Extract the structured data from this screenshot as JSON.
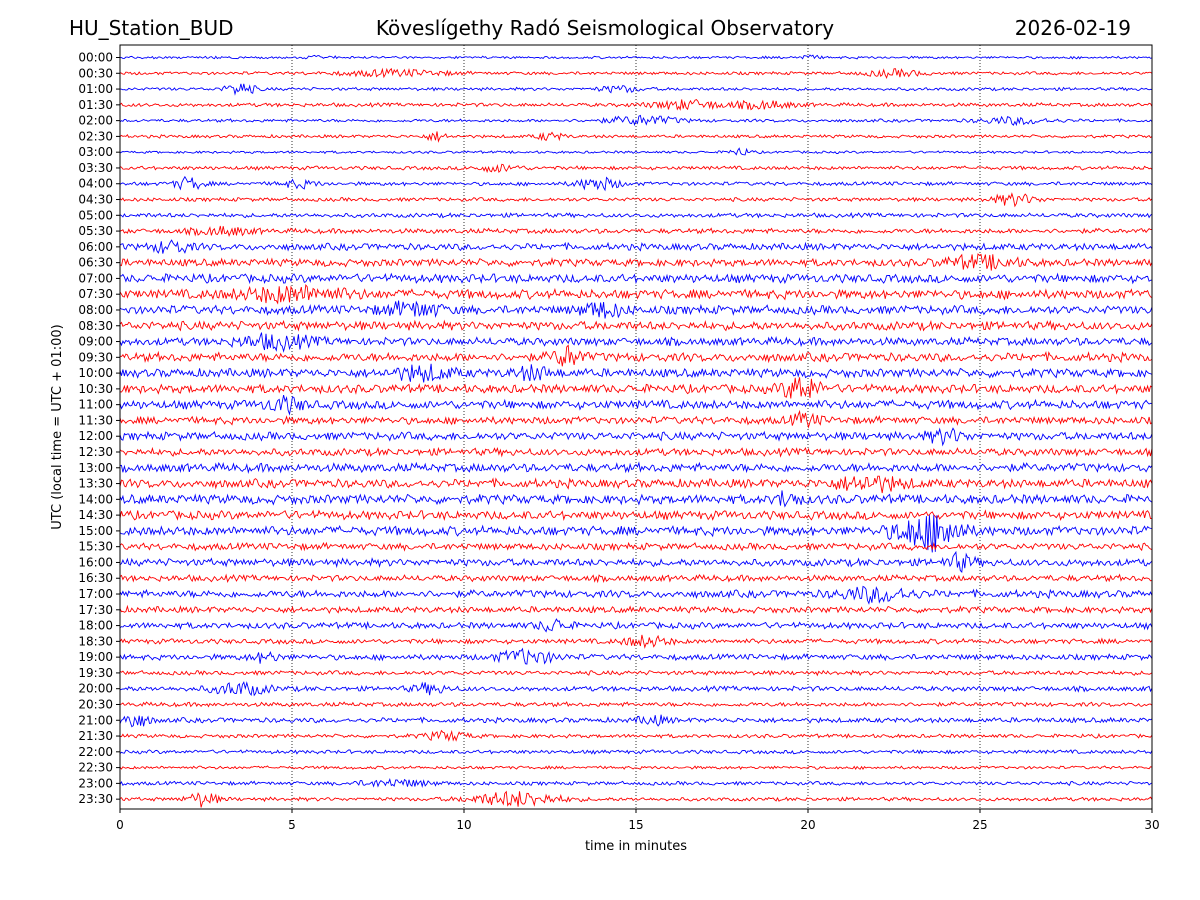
{
  "header": {
    "station": "HU_Station_BUD",
    "observatory": "Köveslígethy Radó Seismological Observatory",
    "date": "2026-02-19"
  },
  "chart_data": {
    "type": "line",
    "title": "Köveslígethy Radó Seismological Observatory",
    "xlabel": "time in minutes",
    "ylabel": "UTC (local time = UTC + 01:00)",
    "xlim": [
      0,
      30
    ],
    "x_ticks": [
      0,
      5,
      10,
      15,
      20,
      25,
      30
    ],
    "grid": "vertical dotted at each x tick",
    "trace_colors": [
      "#0000ff",
      "#ff0000"
    ],
    "rows": [
      {
        "label": "00:00",
        "amp": 0.2,
        "events": [
          {
            "t": 5.8,
            "amp": 0.3,
            "dur": 0.3
          },
          {
            "t": 20.0,
            "amp": 0.3,
            "dur": 0.3
          }
        ]
      },
      {
        "label": "00:30",
        "amp": 0.25,
        "events": [
          {
            "t": 8.0,
            "amp": 0.4,
            "dur": 1.5
          },
          {
            "t": 22.5,
            "amp": 0.45,
            "dur": 0.8
          }
        ]
      },
      {
        "label": "01:00",
        "amp": 0.25,
        "events": [
          {
            "t": 3.5,
            "amp": 0.85,
            "dur": 0.4
          },
          {
            "t": 14.5,
            "amp": 0.4,
            "dur": 0.6
          }
        ]
      },
      {
        "label": "01:30",
        "amp": 0.3,
        "events": [
          {
            "t": 16.5,
            "amp": 0.6,
            "dur": 1.0
          },
          {
            "t": 18.7,
            "amp": 0.5,
            "dur": 0.8
          }
        ]
      },
      {
        "label": "02:00",
        "amp": 0.25,
        "events": [
          {
            "t": 15.2,
            "amp": 0.6,
            "dur": 1.0
          },
          {
            "t": 26.0,
            "amp": 0.45,
            "dur": 1.0
          }
        ]
      },
      {
        "label": "02:30",
        "amp": 0.25,
        "events": [
          {
            "t": 9.2,
            "amp": 0.6,
            "dur": 0.3
          },
          {
            "t": 12.5,
            "amp": 0.5,
            "dur": 0.4
          }
        ]
      },
      {
        "label": "03:00",
        "amp": 0.2,
        "events": [
          {
            "t": 18.0,
            "amp": 0.5,
            "dur": 0.3
          }
        ]
      },
      {
        "label": "03:30",
        "amp": 0.3,
        "events": [
          {
            "t": 11.0,
            "amp": 0.45,
            "dur": 0.6
          }
        ]
      },
      {
        "label": "04:00",
        "amp": 0.3,
        "events": [
          {
            "t": 2.0,
            "amp": 0.85,
            "dur": 0.4
          },
          {
            "t": 13.9,
            "amp": 0.85,
            "dur": 0.6
          },
          {
            "t": 5.2,
            "amp": 0.5,
            "dur": 0.5
          }
        ]
      },
      {
        "label": "04:30",
        "amp": 0.3,
        "events": [
          {
            "t": 26.0,
            "amp": 0.75,
            "dur": 0.6
          }
        ]
      },
      {
        "label": "05:00",
        "amp": 0.35,
        "events": []
      },
      {
        "label": "05:30",
        "amp": 0.4,
        "events": [
          {
            "t": 3.0,
            "amp": 0.5,
            "dur": 0.8
          }
        ]
      },
      {
        "label": "06:00",
        "amp": 0.55,
        "events": [
          {
            "t": 1.5,
            "amp": 0.8,
            "dur": 0.5
          }
        ]
      },
      {
        "label": "06:30",
        "amp": 0.6,
        "events": [
          {
            "t": 25.0,
            "amp": 0.8,
            "dur": 1.0
          }
        ]
      },
      {
        "label": "07:00",
        "amp": 0.7,
        "events": []
      },
      {
        "label": "07:30",
        "amp": 0.75,
        "events": [
          {
            "t": 5.0,
            "amp": 0.9,
            "dur": 1.5
          }
        ]
      },
      {
        "label": "08:00",
        "amp": 0.7,
        "events": [
          {
            "t": 8.5,
            "amp": 0.9,
            "dur": 0.8
          },
          {
            "t": 14.0,
            "amp": 0.9,
            "dur": 0.6
          }
        ]
      },
      {
        "label": "08:30",
        "amp": 0.7,
        "events": []
      },
      {
        "label": "09:00",
        "amp": 0.65,
        "events": [
          {
            "t": 4.5,
            "amp": 0.85,
            "dur": 1.0
          }
        ]
      },
      {
        "label": "09:30",
        "amp": 0.7,
        "events": [
          {
            "t": 13.0,
            "amp": 1.3,
            "dur": 0.4
          }
        ]
      },
      {
        "label": "10:00",
        "amp": 0.7,
        "events": [
          {
            "t": 8.8,
            "amp": 0.9,
            "dur": 0.8
          },
          {
            "t": 12.0,
            "amp": 0.8,
            "dur": 0.5
          }
        ]
      },
      {
        "label": "10:30",
        "amp": 0.7,
        "events": [
          {
            "t": 19.8,
            "amp": 1.6,
            "dur": 0.5
          }
        ]
      },
      {
        "label": "11:00",
        "amp": 0.7,
        "events": [
          {
            "t": 4.8,
            "amp": 0.9,
            "dur": 0.5
          }
        ]
      },
      {
        "label": "11:30",
        "amp": 0.6,
        "events": [
          {
            "t": 19.9,
            "amp": 0.8,
            "dur": 0.4
          }
        ]
      },
      {
        "label": "12:00",
        "amp": 0.65,
        "events": [
          {
            "t": 24.0,
            "amp": 0.8,
            "dur": 0.5
          }
        ]
      },
      {
        "label": "12:30",
        "amp": 0.6,
        "events": []
      },
      {
        "label": "13:00",
        "amp": 0.7,
        "events": []
      },
      {
        "label": "13:30",
        "amp": 0.7,
        "events": [
          {
            "t": 21.8,
            "amp": 0.9,
            "dur": 1.0
          }
        ]
      },
      {
        "label": "14:00",
        "amp": 0.75,
        "events": [
          {
            "t": 19.4,
            "amp": 1.1,
            "dur": 0.3
          }
        ]
      },
      {
        "label": "14:30",
        "amp": 0.7,
        "events": []
      },
      {
        "label": "15:00",
        "amp": 0.75,
        "events": [
          {
            "t": 23.2,
            "amp": 1.6,
            "dur": 0.8
          },
          {
            "t": 23.9,
            "amp": 1.6,
            "dur": 0.6
          }
        ]
      },
      {
        "label": "15:30",
        "amp": 0.55,
        "events": []
      },
      {
        "label": "16:00",
        "amp": 0.6,
        "events": [
          {
            "t": 24.4,
            "amp": 1.0,
            "dur": 0.4
          }
        ]
      },
      {
        "label": "16:30",
        "amp": 0.5,
        "events": []
      },
      {
        "label": "17:00",
        "amp": 0.6,
        "events": [
          {
            "t": 22.0,
            "amp": 0.9,
            "dur": 1.0
          }
        ]
      },
      {
        "label": "17:30",
        "amp": 0.5,
        "events": []
      },
      {
        "label": "18:00",
        "amp": 0.5,
        "events": [
          {
            "t": 12.6,
            "amp": 0.8,
            "dur": 0.4
          }
        ]
      },
      {
        "label": "18:30",
        "amp": 0.4,
        "events": [
          {
            "t": 15.3,
            "amp": 0.7,
            "dur": 0.6
          }
        ]
      },
      {
        "label": "19:00",
        "amp": 0.45,
        "events": [
          {
            "t": 11.8,
            "amp": 0.9,
            "dur": 0.8
          },
          {
            "t": 4.2,
            "amp": 0.6,
            "dur": 0.4
          }
        ]
      },
      {
        "label": "19:30",
        "amp": 0.35,
        "events": []
      },
      {
        "label": "20:00",
        "amp": 0.4,
        "events": [
          {
            "t": 3.5,
            "amp": 0.8,
            "dur": 0.8
          },
          {
            "t": 9.0,
            "amp": 0.6,
            "dur": 0.5
          }
        ]
      },
      {
        "label": "20:30",
        "amp": 0.35,
        "events": []
      },
      {
        "label": "21:00",
        "amp": 0.4,
        "events": [
          {
            "t": 0.4,
            "amp": 1.0,
            "dur": 0.4
          },
          {
            "t": 15.5,
            "amp": 0.6,
            "dur": 0.4
          }
        ]
      },
      {
        "label": "21:30",
        "amp": 0.3,
        "events": [
          {
            "t": 9.5,
            "amp": 0.6,
            "dur": 0.6
          }
        ]
      },
      {
        "label": "22:00",
        "amp": 0.3,
        "events": []
      },
      {
        "label": "22:30",
        "amp": 0.25,
        "events": []
      },
      {
        "label": "23:00",
        "amp": 0.3,
        "events": [
          {
            "t": 8.0,
            "amp": 0.45,
            "dur": 1.0
          }
        ]
      },
      {
        "label": "23:30",
        "amp": 0.3,
        "events": [
          {
            "t": 2.4,
            "amp": 1.0,
            "dur": 0.4
          },
          {
            "t": 11.5,
            "amp": 1.0,
            "dur": 1.2
          }
        ]
      }
    ]
  }
}
